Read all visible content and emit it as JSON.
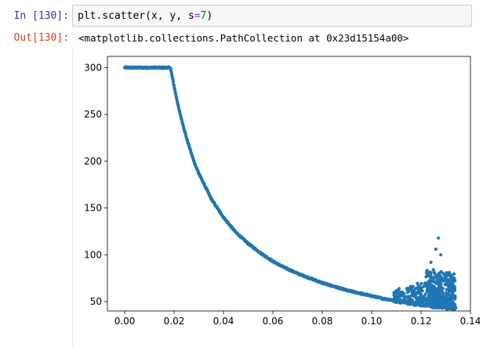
{
  "input_cell": {
    "prompt": "In [130]:",
    "code_parts": {
      "prefix": "plt.scatter(x, y, s",
      "op": "=",
      "num": "7",
      "suffix": ")"
    }
  },
  "output_cell": {
    "prompt": "Out[130]:",
    "text": "<matplotlib.collections.PathCollection at 0x23d15154a00>"
  },
  "chart_data": {
    "type": "scatter",
    "title": "",
    "xlabel": "",
    "ylabel": "",
    "xlim": [
      -0.007,
      0.14
    ],
    "ylim": [
      40,
      312
    ],
    "xticks": [
      "0.00",
      "0.02",
      "0.04",
      "0.06",
      "0.08",
      "0.10",
      "0.12",
      "0.14"
    ],
    "yticks": [
      "50",
      "100",
      "150",
      "200",
      "250",
      "300"
    ],
    "grid": false,
    "legend": "none",
    "color": "#1f77b4",
    "marker_size": 7,
    "series": [
      {
        "description_points": [
          [
            0.0,
            300
          ],
          [
            0.005,
            300
          ],
          [
            0.01,
            300
          ],
          [
            0.015,
            300
          ],
          [
            0.0185,
            300
          ],
          [
            0.02,
            280
          ],
          [
            0.022,
            255
          ],
          [
            0.025,
            225
          ],
          [
            0.028,
            200
          ],
          [
            0.03,
            187
          ],
          [
            0.035,
            160
          ],
          [
            0.04,
            140
          ],
          [
            0.045,
            124
          ],
          [
            0.05,
            112
          ],
          [
            0.055,
            102
          ],
          [
            0.06,
            93
          ],
          [
            0.065,
            86
          ],
          [
            0.07,
            80
          ],
          [
            0.075,
            75
          ],
          [
            0.08,
            70
          ],
          [
            0.085,
            66
          ],
          [
            0.09,
            62
          ],
          [
            0.095,
            59
          ],
          [
            0.1,
            56
          ],
          [
            0.105,
            53
          ],
          [
            0.11,
            51
          ],
          [
            0.115,
            49
          ],
          [
            0.12,
            47
          ],
          [
            0.125,
            45
          ],
          [
            0.13,
            44
          ],
          [
            0.134,
            43
          ]
        ],
        "outliers": [
          [
            0.127,
            118
          ],
          [
            0.126,
            106
          ],
          [
            0.128,
            100
          ],
          [
            0.124,
            92
          ],
          [
            0.125,
            84
          ],
          [
            0.129,
            80
          ],
          [
            0.131,
            78
          ],
          [
            0.119,
            63
          ],
          [
            0.115,
            62
          ],
          [
            0.112,
            60
          ],
          [
            0.121,
            66
          ],
          [
            0.126,
            70
          ],
          [
            0.13,
            72
          ],
          [
            0.132,
            66
          ],
          [
            0.118,
            58
          ]
        ]
      }
    ]
  }
}
